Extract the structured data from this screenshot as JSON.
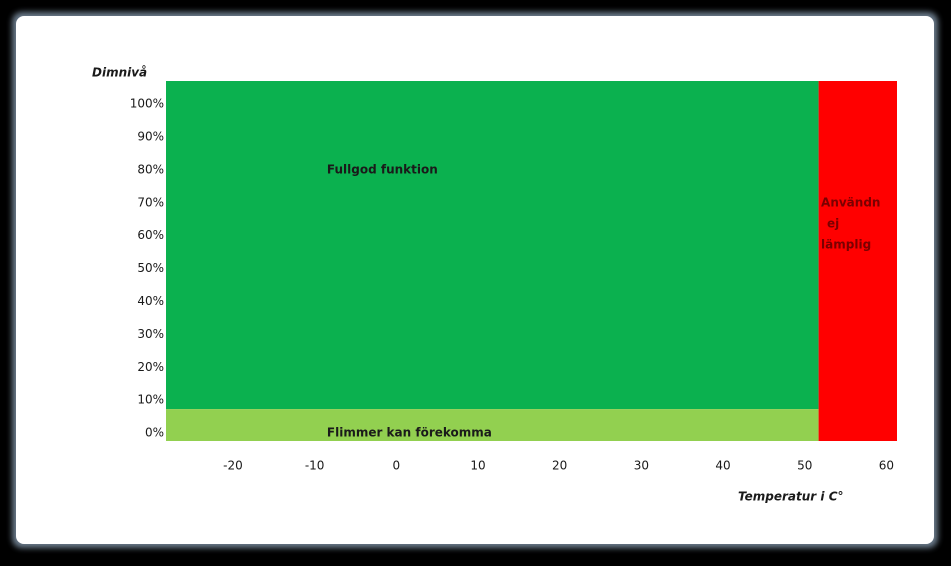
{
  "chart_data": {
    "type": "zones",
    "y_label": "Dimnivå",
    "x_label": "Temperatur i C°",
    "xlim": [
      -28.2,
      61.3
    ],
    "ylim": [
      -2.4,
      107
    ],
    "xticks": [
      -20,
      -10,
      0,
      10,
      20,
      30,
      40,
      50,
      60
    ],
    "yticks": [
      {
        "value": 0,
        "label": "0%"
      },
      {
        "value": 10,
        "label": "10%"
      },
      {
        "value": 20,
        "label": "20%"
      },
      {
        "value": 30,
        "label": "30%"
      },
      {
        "value": 40,
        "label": "40%"
      },
      {
        "value": 50,
        "label": "50%"
      },
      {
        "value": 60,
        "label": "60%"
      },
      {
        "value": 70,
        "label": "70%"
      },
      {
        "value": 80,
        "label": "80%"
      },
      {
        "value": 90,
        "label": "90%"
      },
      {
        "value": 100,
        "label": "100%"
      }
    ],
    "zones": [
      {
        "label": [
          "Fullgod funktion"
        ],
        "color": "#0bb14f",
        "text_color": "#1a1a1a",
        "x": [
          -28.2,
          51.7
        ],
        "y": [
          7.3,
          107
        ],
        "label_at": [
          -8.5,
          80
        ]
      },
      {
        "label": [
          "Flimmer kan förekomma"
        ],
        "color": "#92d050",
        "text_color": "#1a1a1a",
        "x": [
          -28.2,
          51.7
        ],
        "y": [
          -2.4,
          7.3
        ],
        "label_at": [
          -8.5,
          0
        ]
      },
      {
        "label": [
          "Användn",
          "ej",
          "lämplig"
        ],
        "color": "#ff0000",
        "text_color": "#7a0000",
        "x": [
          51.7,
          61.3
        ],
        "y": [
          -2.4,
          107
        ],
        "label_at": [
          52,
          70
        ]
      }
    ]
  }
}
